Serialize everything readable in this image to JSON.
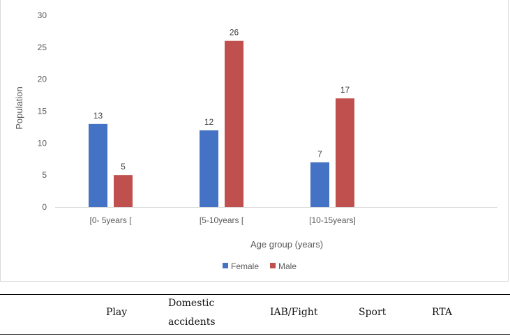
{
  "chart_data": {
    "type": "bar",
    "categories": [
      "[0- 5years [",
      "[5-10years [",
      "[10-15years]"
    ],
    "series": [
      {
        "name": "Female",
        "color": "#4472c4",
        "values": [
          13,
          12,
          7
        ]
      },
      {
        "name": "Male",
        "color": "#c0504d",
        "values": [
          5,
          26,
          17
        ]
      }
    ],
    "xlabel": "Age group (years)",
    "ylabel": "Population",
    "ylim": [
      0,
      30
    ],
    "yticks": [
      0,
      5,
      10,
      15,
      20,
      25,
      30
    ],
    "grid": false,
    "legend_position": "bottom"
  },
  "table": {
    "columns": [
      {
        "line1": "Play",
        "line2": ""
      },
      {
        "line1": "Domestic",
        "line2": "accidents"
      },
      {
        "line1": "IAB/Fight",
        "line2": ""
      },
      {
        "line1": "Sport",
        "line2": ""
      },
      {
        "line1": "RTA",
        "line2": ""
      }
    ]
  }
}
